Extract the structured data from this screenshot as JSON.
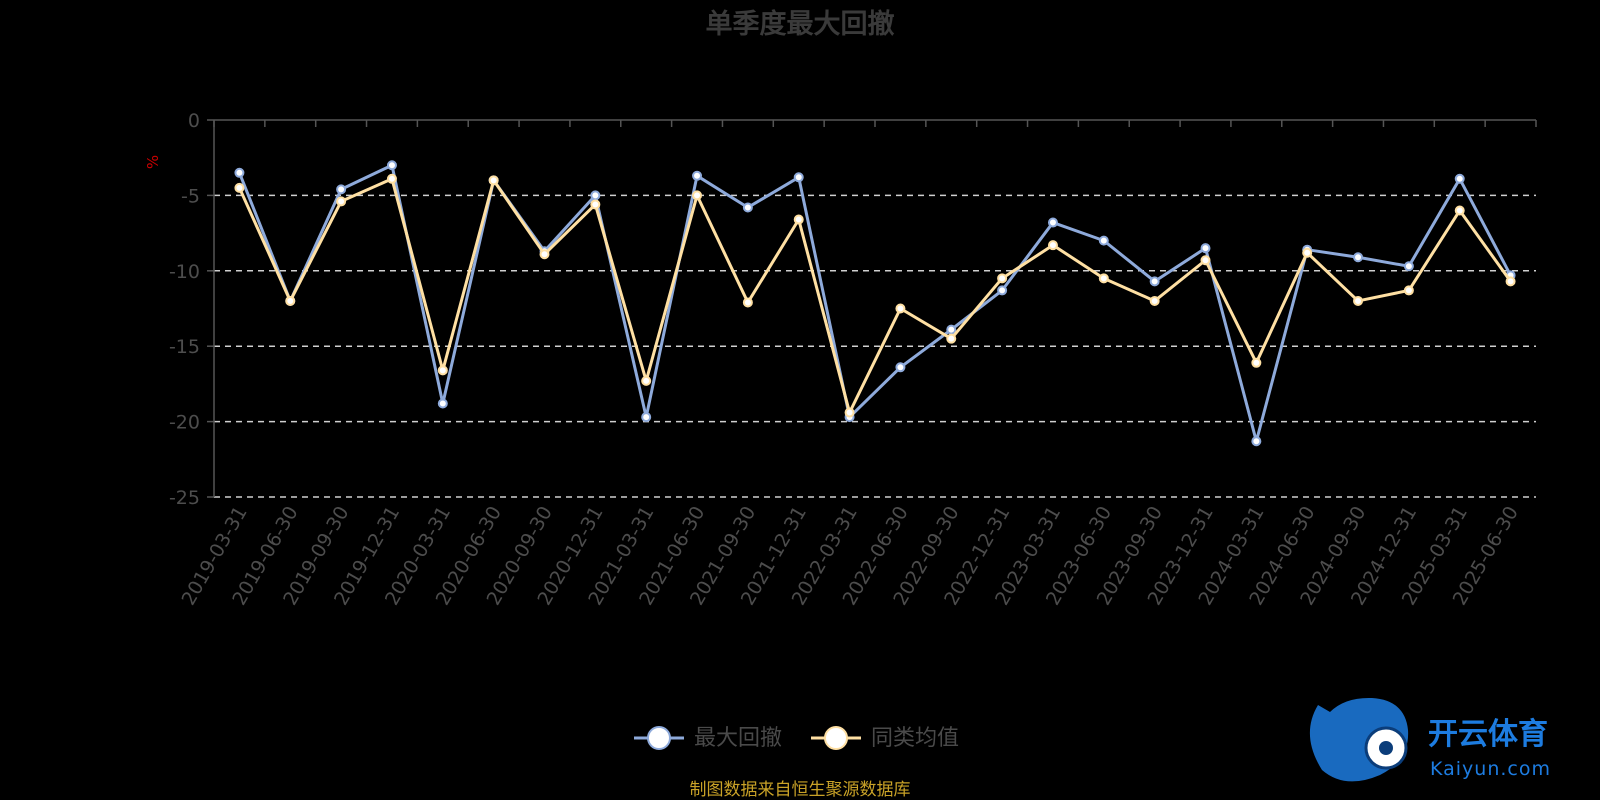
{
  "chart_data": {
    "type": "line",
    "title": "单季度最大回撤",
    "ylabel": "%",
    "ylim": [
      -25,
      0
    ],
    "yticks": [
      0,
      -5,
      -10,
      -15,
      -20,
      -25
    ],
    "grid": "horizontal-dashed",
    "legend_position": "bottom-center",
    "categories": [
      "2019-03-31",
      "2019-06-30",
      "2019-09-30",
      "2019-12-31",
      "2020-03-31",
      "2020-06-30",
      "2020-09-30",
      "2020-12-31",
      "2021-03-31",
      "2021-06-30",
      "2021-09-30",
      "2021-12-31",
      "2022-03-31",
      "2022-06-30",
      "2022-09-30",
      "2022-12-31",
      "2023-03-31",
      "2023-06-30",
      "2023-09-30",
      "2023-12-31",
      "2024-03-31",
      "2024-06-30",
      "2024-09-30",
      "2024-12-31",
      "2025-03-31",
      "2025-06-30"
    ],
    "series": [
      {
        "name": "最大回撤",
        "color": "#8eaadb",
        "values": [
          -3.5,
          -12.0,
          -4.6,
          -3.0,
          -18.8,
          -4.0,
          -8.7,
          -5.0,
          -19.7,
          -3.7,
          -5.8,
          -3.8,
          -19.7,
          -16.4,
          -13.9,
          -11.3,
          -6.8,
          -8.0,
          -10.7,
          -8.5,
          -21.3,
          -8.6,
          -9.1,
          -9.7,
          -3.9,
          -10.3
        ]
      },
      {
        "name": "同类均值",
        "color": "#ffe0a3",
        "values": [
          -4.5,
          -12.0,
          -5.4,
          -3.9,
          -16.6,
          -4.0,
          -8.9,
          -5.6,
          -17.3,
          -5.0,
          -12.1,
          -6.6,
          -19.4,
          -12.5,
          -14.5,
          -10.5,
          -8.3,
          -10.5,
          -12.0,
          -9.3,
          -16.1,
          -8.8,
          -12.0,
          -11.3,
          -6.0,
          -10.7
        ]
      }
    ]
  },
  "source_note": "制图数据来自恒生聚源数据库",
  "watermark": {
    "name": "开云体育",
    "sub": "Kaiyun.com"
  }
}
